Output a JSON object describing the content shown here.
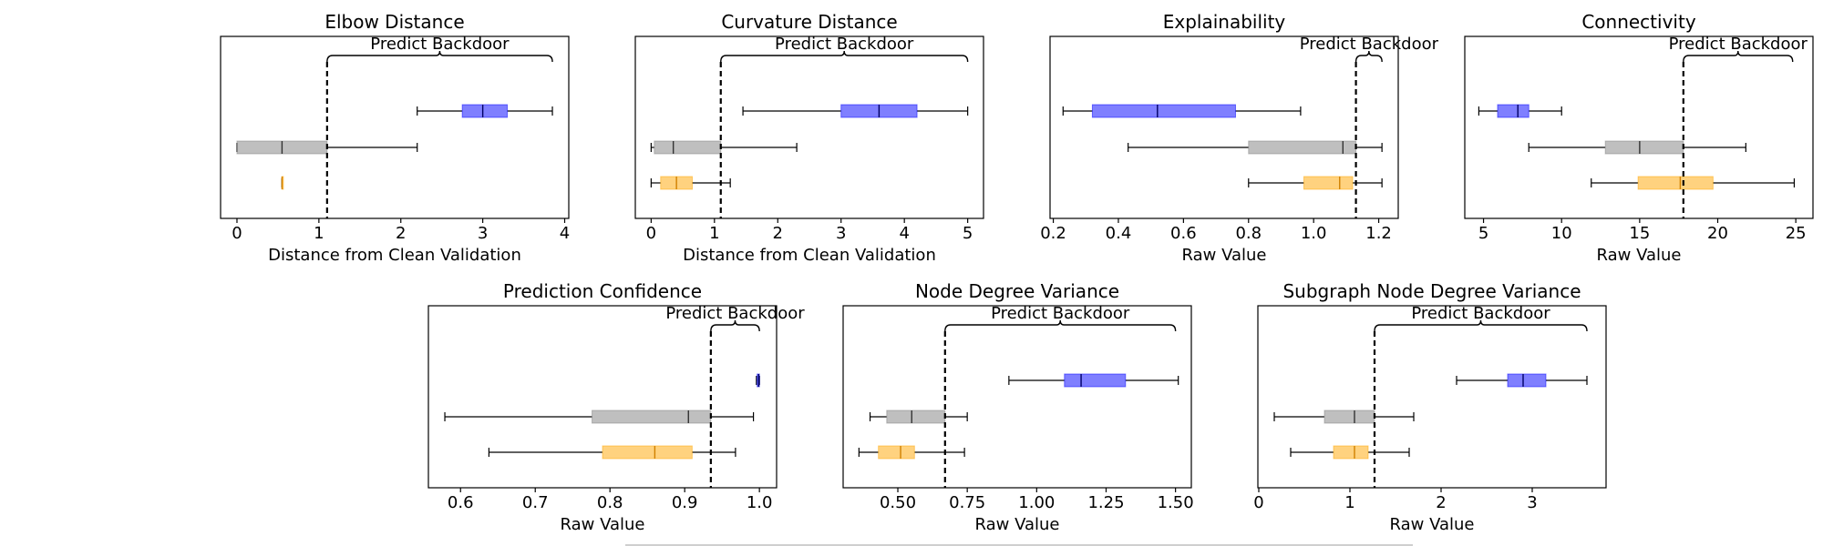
{
  "colors": {
    "blue": "#0000ff",
    "gray": "#808080",
    "orange": "#ffa500"
  },
  "threshold_label": "Predict Backdoor",
  "chart_data": [
    {
      "type": "boxplot",
      "orientation": "horizontal",
      "title": "Elbow Distance",
      "xlabel": "Distance from Clean Validation",
      "xlim": [
        -0.2,
        4.05
      ],
      "xticks": [
        0,
        1,
        2,
        3,
        4
      ],
      "xtick_labels": [
        "0",
        "1",
        "2",
        "3",
        "4"
      ],
      "threshold": 1.1,
      "bracket_to": 3.85,
      "boxes": [
        {
          "color": "blue",
          "whislo": 2.2,
          "q1": 2.75,
          "med": 3.0,
          "q3": 3.3,
          "whishi": 3.85
        },
        {
          "color": "gray",
          "whislo": 0.0,
          "q1": 0.0,
          "med": 0.55,
          "q3": 1.1,
          "whishi": 2.2
        },
        {
          "color": "orange",
          "whislo": 0.55,
          "q1": 0.55,
          "med": 0.55,
          "q3": 0.55,
          "whishi": 0.55
        }
      ]
    },
    {
      "type": "boxplot",
      "orientation": "horizontal",
      "title": "Curvature Distance",
      "xlabel": "Distance from Clean Validation",
      "xlim": [
        -0.25,
        5.25
      ],
      "xticks": [
        0,
        1,
        2,
        3,
        4,
        5
      ],
      "xtick_labels": [
        "0",
        "1",
        "2",
        "3",
        "4",
        "5"
      ],
      "threshold": 1.1,
      "bracket_to": 5.0,
      "boxes": [
        {
          "color": "blue",
          "whislo": 1.45,
          "q1": 3.0,
          "med": 3.6,
          "q3": 4.2,
          "whishi": 5.0
        },
        {
          "color": "gray",
          "whislo": 0.0,
          "q1": 0.05,
          "med": 0.35,
          "q3": 1.1,
          "whishi": 2.3
        },
        {
          "color": "orange",
          "whislo": 0.0,
          "q1": 0.15,
          "med": 0.4,
          "q3": 0.65,
          "whishi": 1.25
        }
      ]
    },
    {
      "type": "boxplot",
      "orientation": "horizontal",
      "title": "Explainability",
      "xlabel": "Raw Value",
      "xlim": [
        0.19,
        1.26
      ],
      "xticks": [
        0.2,
        0.4,
        0.6,
        0.8,
        1.0,
        1.2
      ],
      "xtick_labels": [
        "0.2",
        "0.4",
        "0.6",
        "0.8",
        "1.0",
        "1.2"
      ],
      "threshold": 1.13,
      "bracket_to": 1.21,
      "boxes": [
        {
          "color": "blue",
          "whislo": 0.23,
          "q1": 0.32,
          "med": 0.52,
          "q3": 0.76,
          "whishi": 0.96
        },
        {
          "color": "gray",
          "whislo": 0.43,
          "q1": 0.8,
          "med": 1.09,
          "q3": 1.13,
          "whishi": 1.21
        },
        {
          "color": "orange",
          "whislo": 0.8,
          "q1": 0.97,
          "med": 1.08,
          "q3": 1.12,
          "whishi": 1.21
        }
      ]
    },
    {
      "type": "boxplot",
      "orientation": "horizontal",
      "title": "Connectivity",
      "xlabel": "Raw Value",
      "xlim": [
        3.8,
        26.1
      ],
      "xticks": [
        5,
        10,
        15,
        20,
        25
      ],
      "xtick_labels": [
        "5",
        "10",
        "15",
        "20",
        "25"
      ],
      "threshold": 17.8,
      "bracket_to": 24.8,
      "boxes": [
        {
          "color": "blue",
          "whislo": 4.7,
          "q1": 5.9,
          "med": 7.2,
          "q3": 7.9,
          "whishi": 10.0
        },
        {
          "color": "gray",
          "whislo": 7.9,
          "q1": 12.8,
          "med": 15.0,
          "q3": 17.8,
          "whishi": 21.8
        },
        {
          "color": "orange",
          "whislo": 11.9,
          "q1": 14.9,
          "med": 17.6,
          "q3": 19.7,
          "whishi": 24.9
        }
      ]
    },
    {
      "type": "boxplot",
      "orientation": "horizontal",
      "title": "Prediction Confidence",
      "xlabel": "Raw Value",
      "xlim": [
        0.557,
        1.023
      ],
      "xticks": [
        0.6,
        0.7,
        0.8,
        0.9,
        1.0
      ],
      "xtick_labels": [
        "0.6",
        "0.7",
        "0.8",
        "0.9",
        "1.0"
      ],
      "threshold": 0.935,
      "bracket_to": 1.0,
      "boxes": [
        {
          "color": "blue",
          "whislo": 0.996,
          "q1": 0.997,
          "med": 0.999,
          "q3": 1.0,
          "whishi": 1.0
        },
        {
          "color": "gray",
          "whislo": 0.579,
          "q1": 0.776,
          "med": 0.905,
          "q3": 0.935,
          "whishi": 0.992
        },
        {
          "color": "orange",
          "whislo": 0.638,
          "q1": 0.79,
          "med": 0.86,
          "q3": 0.91,
          "whishi": 0.968
        }
      ]
    },
    {
      "type": "boxplot",
      "orientation": "horizontal",
      "title": "Node Degree Variance",
      "xlabel": "Raw Value",
      "xlim": [
        0.303,
        1.557
      ],
      "xticks": [
        0.5,
        0.75,
        1.0,
        1.25,
        1.5
      ],
      "xtick_labels": [
        "0.50",
        "0.75",
        "1.00",
        "1.25",
        "1.50"
      ],
      "threshold": 0.67,
      "bracket_to": 1.5,
      "boxes": [
        {
          "color": "blue",
          "whislo": 0.9,
          "q1": 1.1,
          "med": 1.16,
          "q3": 1.32,
          "whishi": 1.51
        },
        {
          "color": "gray",
          "whislo": 0.4,
          "q1": 0.46,
          "med": 0.55,
          "q3": 0.67,
          "whishi": 0.75
        },
        {
          "color": "orange",
          "whislo": 0.36,
          "q1": 0.43,
          "med": 0.51,
          "q3": 0.56,
          "whishi": 0.74
        }
      ]
    },
    {
      "type": "boxplot",
      "orientation": "horizontal",
      "title": "Subgraph Node Degree Variance",
      "xlabel": "Raw Value",
      "xlim": [
        -0.01,
        3.81
      ],
      "xticks": [
        0,
        1,
        2,
        3
      ],
      "xtick_labels": [
        "0",
        "1",
        "2",
        "3"
      ],
      "threshold": 1.27,
      "bracket_to": 3.6,
      "boxes": [
        {
          "color": "blue",
          "whislo": 2.17,
          "q1": 2.73,
          "med": 2.9,
          "q3": 3.15,
          "whishi": 3.6
        },
        {
          "color": "gray",
          "whislo": 0.17,
          "q1": 0.72,
          "med": 1.05,
          "q3": 1.27,
          "whishi": 1.7
        },
        {
          "color": "orange",
          "whislo": 0.35,
          "q1": 0.82,
          "med": 1.05,
          "q3": 1.2,
          "whishi": 1.65
        }
      ]
    }
  ]
}
